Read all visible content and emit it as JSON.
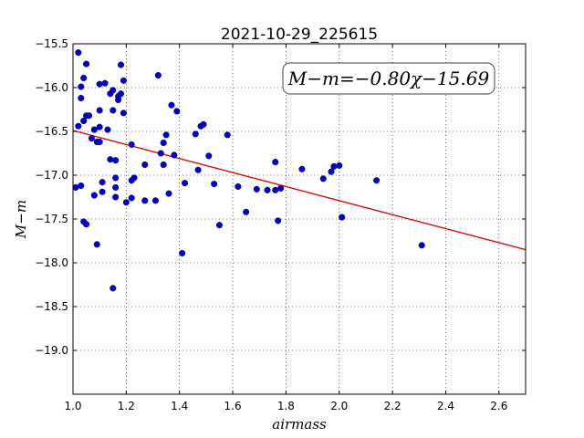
{
  "chart_data": {
    "type": "scatter",
    "title": "2021-10-29_225615",
    "xlabel": "airmass",
    "ylabel": "M−m",
    "xlim": [
      1.0,
      2.7
    ],
    "ylim": [
      -19.5,
      -15.5
    ],
    "y_inverted": true,
    "grid": true,
    "x_ticks": [
      "1.0",
      "1.2",
      "1.4",
      "1.6",
      "1.8",
      "2.0",
      "2.2",
      "2.4",
      "2.6"
    ],
    "y_ticks": [
      "−15.5",
      "−16.0",
      "−16.5",
      "−17.0",
      "−17.5",
      "−18.0",
      "−18.5",
      "−19.0"
    ],
    "annotation": "M−m=−0.80χ−15.69",
    "point_color": "#0000cc",
    "fit_color": "#dd0000",
    "fit_line": {
      "slope": -0.8,
      "intercept": -15.69,
      "x": [
        1.0,
        2.7
      ]
    },
    "points": [
      [
        1.01,
        -17.14
      ],
      [
        1.02,
        -16.44
      ],
      [
        1.02,
        -15.6
      ],
      [
        1.03,
        -15.99
      ],
      [
        1.03,
        -16.12
      ],
      [
        1.03,
        -17.12
      ],
      [
        1.04,
        -15.89
      ],
      [
        1.04,
        -16.38
      ],
      [
        1.04,
        -17.53
      ],
      [
        1.05,
        -15.73
      ],
      [
        1.05,
        -17.56
      ],
      [
        1.05,
        -16.32
      ],
      [
        1.06,
        -16.32
      ],
      [
        1.07,
        -16.58
      ],
      [
        1.08,
        -16.48
      ],
      [
        1.08,
        -17.23
      ],
      [
        1.09,
        -16.62
      ],
      [
        1.09,
        -17.79
      ],
      [
        1.1,
        -15.96
      ],
      [
        1.1,
        -16.26
      ],
      [
        1.1,
        -16.45
      ],
      [
        1.1,
        -16.62
      ],
      [
        1.11,
        -17.19
      ],
      [
        1.11,
        -17.08
      ],
      [
        1.12,
        -15.95
      ],
      [
        1.13,
        -16.48
      ],
      [
        1.14,
        -16.07
      ],
      [
        1.14,
        -16.82
      ],
      [
        1.15,
        -16.26
      ],
      [
        1.15,
        -16.03
      ],
      [
        1.15,
        -18.29
      ],
      [
        1.16,
        -17.03
      ],
      [
        1.16,
        -17.14
      ],
      [
        1.16,
        -16.83
      ],
      [
        1.16,
        -17.25
      ],
      [
        1.17,
        -16.1
      ],
      [
        1.17,
        -16.14
      ],
      [
        1.18,
        -16.07
      ],
      [
        1.18,
        -15.74
      ],
      [
        1.19,
        -16.29
      ],
      [
        1.19,
        -15.92
      ],
      [
        1.2,
        -17.31
      ],
      [
        1.22,
        -16.65
      ],
      [
        1.22,
        -17.06
      ],
      [
        1.22,
        -17.26
      ],
      [
        1.23,
        -17.03
      ],
      [
        1.27,
        -16.88
      ],
      [
        1.27,
        -17.29
      ],
      [
        1.31,
        -17.29
      ],
      [
        1.32,
        -15.86
      ],
      [
        1.33,
        -16.75
      ],
      [
        1.34,
        -16.88
      ],
      [
        1.34,
        -16.63
      ],
      [
        1.35,
        -16.54
      ],
      [
        1.36,
        -17.21
      ],
      [
        1.37,
        -16.2
      ],
      [
        1.38,
        -16.77
      ],
      [
        1.39,
        -16.27
      ],
      [
        1.42,
        -17.09
      ],
      [
        1.41,
        -17.89
      ],
      [
        1.46,
        -16.53
      ],
      [
        1.47,
        -16.94
      ],
      [
        1.48,
        -16.44
      ],
      [
        1.49,
        -16.42
      ],
      [
        1.51,
        -16.78
      ],
      [
        1.53,
        -17.1
      ],
      [
        1.55,
        -17.57
      ],
      [
        1.58,
        -16.54
      ],
      [
        1.62,
        -17.13
      ],
      [
        1.65,
        -17.42
      ],
      [
        1.69,
        -17.16
      ],
      [
        1.73,
        -17.17
      ],
      [
        1.76,
        -16.85
      ],
      [
        1.76,
        -17.17
      ],
      [
        1.77,
        -17.52
      ],
      [
        1.78,
        -17.15
      ],
      [
        1.86,
        -16.93
      ],
      [
        1.94,
        -17.04
      ],
      [
        1.97,
        -16.96
      ],
      [
        1.98,
        -16.9
      ],
      [
        2.0,
        -16.89
      ],
      [
        2.01,
        -17.48
      ],
      [
        2.14,
        -17.06
      ],
      [
        2.31,
        -17.8
      ]
    ]
  }
}
